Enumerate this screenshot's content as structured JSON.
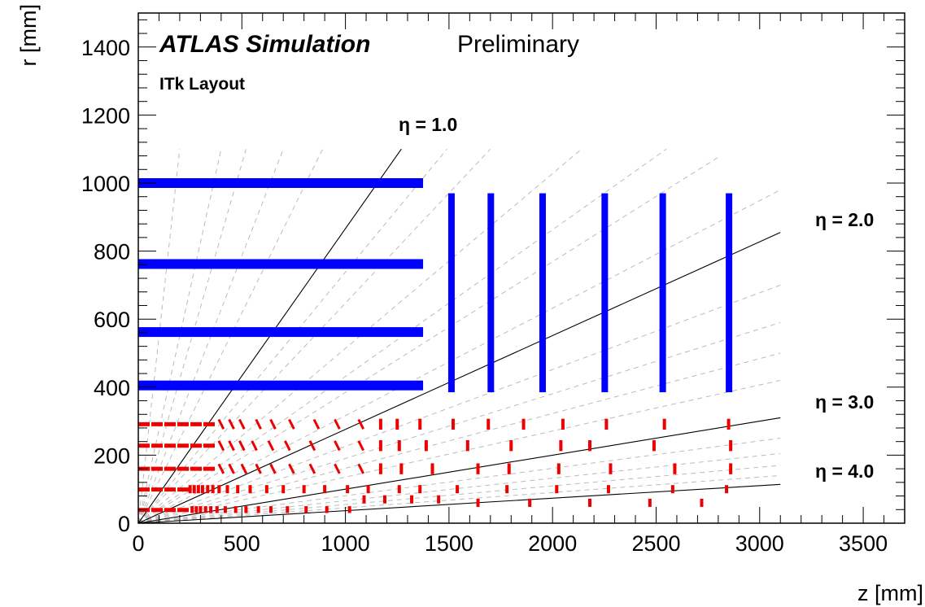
{
  "chart_data": {
    "type": "scatter",
    "title": "ATLAS Simulation",
    "subtitle": "Preliminary",
    "label": "ITk Layout",
    "xlabel": "z [mm]",
    "ylabel": "r [mm]",
    "xlim": [
      0,
      3700
    ],
    "ylim": [
      0,
      1500
    ],
    "x_ticks": [
      0,
      500,
      1000,
      1500,
      2000,
      2500,
      3000,
      3500
    ],
    "y_ticks": [
      0,
      200,
      400,
      600,
      800,
      1000,
      1200,
      1400
    ],
    "colors": {
      "strip": "#0000ff",
      "pixel": "#ee0000",
      "eta_line": "#000000",
      "eta_dashed": "#bbbbbb"
    },
    "eta_lines": [
      {
        "label": "η = 1.0",
        "eta": 1.0,
        "z_end": 1270,
        "r_end": 1100
      },
      {
        "label": "η = 2.0",
        "eta": 2.0,
        "z_end": 3100,
        "r_end": 855
      },
      {
        "label": "η = 3.0",
        "eta": 3.0,
        "z_end": 3100,
        "r_end": 310
      },
      {
        "label": "η = 4.0",
        "eta": 4.0,
        "z_end": 3100,
        "r_end": 114
      }
    ],
    "eta_dashed_lines": [
      {
        "z_end": 200,
        "r_end": 1100
      },
      {
        "z_end": 400,
        "r_end": 1100
      },
      {
        "z_end": 520,
        "r_end": 1100
      },
      {
        "z_end": 700,
        "r_end": 1100
      },
      {
        "z_end": 890,
        "r_end": 1100
      },
      {
        "z_end": 1490,
        "r_end": 1100
      },
      {
        "z_end": 1700,
        "r_end": 1100
      },
      {
        "z_end": 2140,
        "r_end": 1100
      },
      {
        "z_end": 2550,
        "r_end": 1100
      },
      {
        "z_end": 2810,
        "r_end": 1080
      },
      {
        "z_end": 3100,
        "r_end": 980
      },
      {
        "z_end": 3100,
        "r_end": 700
      },
      {
        "z_end": 3100,
        "r_end": 590
      },
      {
        "z_end": 3100,
        "r_end": 500
      },
      {
        "z_end": 3100,
        "r_end": 420
      },
      {
        "z_end": 3100,
        "r_end": 250
      },
      {
        "z_end": 3100,
        "r_end": 205
      },
      {
        "z_end": 3100,
        "r_end": 170
      },
      {
        "z_end": 3100,
        "r_end": 140
      }
    ],
    "strip_barrel": [
      {
        "r": 1000,
        "z_min": 0,
        "z_max": 1375
      },
      {
        "r": 762,
        "z_min": 0,
        "z_max": 1375
      },
      {
        "r": 562,
        "z_min": 0,
        "z_max": 1375
      },
      {
        "r": 405,
        "z_min": 0,
        "z_max": 1375
      }
    ],
    "strip_endcap": [
      {
        "z": 1512,
        "r_min": 385,
        "r_max": 970
      },
      {
        "z": 1702,
        "r_min": 385,
        "r_max": 970
      },
      {
        "z": 1952,
        "r_min": 385,
        "r_max": 970
      },
      {
        "z": 2252,
        "r_min": 385,
        "r_max": 970
      },
      {
        "z": 2532,
        "r_min": 385,
        "r_max": 970
      },
      {
        "z": 2852,
        "r_min": 385,
        "r_max": 970
      }
    ],
    "pixel_barrel": [
      {
        "r": 291,
        "z_min": 0,
        "z_max": 372
      },
      {
        "r": 228,
        "z_min": 0,
        "z_max": 372
      },
      {
        "r": 160,
        "z_min": 0,
        "z_max": 372
      },
      {
        "r": 99,
        "z_min": 0,
        "z_max": 245
      },
      {
        "r": 39,
        "z_min": 0,
        "z_max": 245
      }
    ],
    "pixel_modules": [
      {
        "z": 400,
        "r": 291,
        "len": 28,
        "tilt": 0.5
      },
      {
        "z": 450,
        "r": 291,
        "len": 28,
        "tilt": 0.5
      },
      {
        "z": 500,
        "r": 291,
        "len": 28,
        "tilt": 0.5
      },
      {
        "z": 580,
        "r": 291,
        "len": 28,
        "tilt": 0.5
      },
      {
        "z": 650,
        "r": 291,
        "len": 28,
        "tilt": 0.5
      },
      {
        "z": 740,
        "r": 291,
        "len": 28,
        "tilt": 0.5
      },
      {
        "z": 860,
        "r": 291,
        "len": 28,
        "tilt": 0.5
      },
      {
        "z": 960,
        "r": 291,
        "len": 28,
        "tilt": 0.5
      },
      {
        "z": 1075,
        "r": 291,
        "len": 28,
        "tilt": 0.5
      },
      {
        "z": 400,
        "r": 228,
        "len": 28,
        "tilt": 0.5
      },
      {
        "z": 450,
        "r": 228,
        "len": 28,
        "tilt": 0.5
      },
      {
        "z": 500,
        "r": 228,
        "len": 28,
        "tilt": 0.5
      },
      {
        "z": 560,
        "r": 228,
        "len": 28,
        "tilt": 0.5
      },
      {
        "z": 640,
        "r": 228,
        "len": 28,
        "tilt": 0.5
      },
      {
        "z": 720,
        "r": 228,
        "len": 28,
        "tilt": 0.5
      },
      {
        "z": 840,
        "r": 228,
        "len": 28,
        "tilt": 0.5
      },
      {
        "z": 960,
        "r": 228,
        "len": 28,
        "tilt": 0.5
      },
      {
        "z": 1075,
        "r": 228,
        "len": 28,
        "tilt": 0.5
      },
      {
        "z": 400,
        "r": 160,
        "len": 28,
        "tilt": 0.5
      },
      {
        "z": 450,
        "r": 160,
        "len": 28,
        "tilt": 0.5
      },
      {
        "z": 510,
        "r": 160,
        "len": 28,
        "tilt": 0.5
      },
      {
        "z": 580,
        "r": 160,
        "len": 28,
        "tilt": 0.5
      },
      {
        "z": 650,
        "r": 160,
        "len": 28,
        "tilt": 0.5
      },
      {
        "z": 740,
        "r": 160,
        "len": 28,
        "tilt": 0.5
      },
      {
        "z": 840,
        "r": 160,
        "len": 28,
        "tilt": 0.5
      },
      {
        "z": 960,
        "r": 160,
        "len": 28,
        "tilt": 0.5
      },
      {
        "z": 1075,
        "r": 160,
        "len": 28,
        "tilt": 0.5
      },
      {
        "z": 1170,
        "r": 291,
        "len": 32,
        "tilt": 0
      },
      {
        "z": 1250,
        "r": 291,
        "len": 32,
        "tilt": 0
      },
      {
        "z": 1360,
        "r": 291,
        "len": 32,
        "tilt": 0
      },
      {
        "z": 1520,
        "r": 291,
        "len": 32,
        "tilt": 0
      },
      {
        "z": 1690,
        "r": 291,
        "len": 32,
        "tilt": 0
      },
      {
        "z": 1860,
        "r": 291,
        "len": 32,
        "tilt": 0
      },
      {
        "z": 2050,
        "r": 291,
        "len": 32,
        "tilt": 0
      },
      {
        "z": 2260,
        "r": 291,
        "len": 32,
        "tilt": 0
      },
      {
        "z": 2540,
        "r": 291,
        "len": 32,
        "tilt": 0
      },
      {
        "z": 2850,
        "r": 291,
        "len": 32,
        "tilt": 0
      },
      {
        "z": 1170,
        "r": 228,
        "len": 32,
        "tilt": 0
      },
      {
        "z": 1260,
        "r": 228,
        "len": 32,
        "tilt": 0
      },
      {
        "z": 1390,
        "r": 228,
        "len": 32,
        "tilt": 0
      },
      {
        "z": 1590,
        "r": 228,
        "len": 32,
        "tilt": 0
      },
      {
        "z": 1800,
        "r": 228,
        "len": 32,
        "tilt": 0
      },
      {
        "z": 2040,
        "r": 228,
        "len": 32,
        "tilt": 0
      },
      {
        "z": 2180,
        "r": 228,
        "len": 32,
        "tilt": 0
      },
      {
        "z": 2490,
        "r": 228,
        "len": 32,
        "tilt": 0
      },
      {
        "z": 2860,
        "r": 228,
        "len": 32,
        "tilt": 0
      },
      {
        "z": 1170,
        "r": 160,
        "len": 32,
        "tilt": 0
      },
      {
        "z": 1270,
        "r": 160,
        "len": 32,
        "tilt": 0
      },
      {
        "z": 1420,
        "r": 160,
        "len": 32,
        "tilt": 0
      },
      {
        "z": 1640,
        "r": 160,
        "len": 32,
        "tilt": 0
      },
      {
        "z": 1790,
        "r": 160,
        "len": 32,
        "tilt": 0
      },
      {
        "z": 2030,
        "r": 160,
        "len": 32,
        "tilt": 0
      },
      {
        "z": 2280,
        "r": 160,
        "len": 32,
        "tilt": 0
      },
      {
        "z": 2590,
        "r": 160,
        "len": 32,
        "tilt": 0
      },
      {
        "z": 2860,
        "r": 160,
        "len": 32,
        "tilt": 0
      },
      {
        "z": 250,
        "r": 100,
        "len": 24,
        "tilt": 0
      },
      {
        "z": 270,
        "r": 100,
        "len": 24,
        "tilt": 0
      },
      {
        "z": 290,
        "r": 100,
        "len": 24,
        "tilt": 0
      },
      {
        "z": 310,
        "r": 100,
        "len": 24,
        "tilt": 0
      },
      {
        "z": 335,
        "r": 100,
        "len": 24,
        "tilt": 0
      },
      {
        "z": 360,
        "r": 100,
        "len": 24,
        "tilt": 0
      },
      {
        "z": 390,
        "r": 100,
        "len": 24,
        "tilt": 0
      },
      {
        "z": 430,
        "r": 100,
        "len": 24,
        "tilt": 0
      },
      {
        "z": 480,
        "r": 100,
        "len": 24,
        "tilt": 0
      },
      {
        "z": 540,
        "r": 100,
        "len": 24,
        "tilt": 0
      },
      {
        "z": 620,
        "r": 100,
        "len": 24,
        "tilt": 0
      },
      {
        "z": 700,
        "r": 100,
        "len": 24,
        "tilt": 0
      },
      {
        "z": 800,
        "r": 100,
        "len": 24,
        "tilt": 0
      },
      {
        "z": 900,
        "r": 100,
        "len": 24,
        "tilt": 0
      },
      {
        "z": 1010,
        "r": 100,
        "len": 24,
        "tilt": 0
      },
      {
        "z": 1110,
        "r": 100,
        "len": 24,
        "tilt": 0
      },
      {
        "z": 1260,
        "r": 100,
        "len": 24,
        "tilt": 0
      },
      {
        "z": 1360,
        "r": 100,
        "len": 24,
        "tilt": 0
      },
      {
        "z": 1540,
        "r": 100,
        "len": 24,
        "tilt": 0
      },
      {
        "z": 1780,
        "r": 100,
        "len": 24,
        "tilt": 0
      },
      {
        "z": 2020,
        "r": 100,
        "len": 24,
        "tilt": 0
      },
      {
        "z": 2270,
        "r": 100,
        "len": 24,
        "tilt": 0
      },
      {
        "z": 2580,
        "r": 100,
        "len": 24,
        "tilt": 0
      },
      {
        "z": 2840,
        "r": 100,
        "len": 24,
        "tilt": 0
      },
      {
        "z": 260,
        "r": 40,
        "len": 20,
        "tilt": 0
      },
      {
        "z": 280,
        "r": 40,
        "len": 20,
        "tilt": 0
      },
      {
        "z": 300,
        "r": 40,
        "len": 20,
        "tilt": 0
      },
      {
        "z": 325,
        "r": 40,
        "len": 20,
        "tilt": 0
      },
      {
        "z": 350,
        "r": 40,
        "len": 20,
        "tilt": 0
      },
      {
        "z": 380,
        "r": 40,
        "len": 20,
        "tilt": 0
      },
      {
        "z": 420,
        "r": 40,
        "len": 20,
        "tilt": 0
      },
      {
        "z": 470,
        "r": 40,
        "len": 20,
        "tilt": 0
      },
      {
        "z": 520,
        "r": 40,
        "len": 20,
        "tilt": 0
      },
      {
        "z": 580,
        "r": 40,
        "len": 20,
        "tilt": 0
      },
      {
        "z": 640,
        "r": 40,
        "len": 20,
        "tilt": 0
      },
      {
        "z": 720,
        "r": 40,
        "len": 20,
        "tilt": 0
      },
      {
        "z": 810,
        "r": 40,
        "len": 20,
        "tilt": 0
      },
      {
        "z": 910,
        "r": 40,
        "len": 20,
        "tilt": 0
      },
      {
        "z": 1020,
        "r": 40,
        "len": 20,
        "tilt": 0
      },
      {
        "z": 1090,
        "r": 70,
        "len": 24,
        "tilt": 0
      },
      {
        "z": 1190,
        "r": 70,
        "len": 24,
        "tilt": 0
      },
      {
        "z": 1320,
        "r": 70,
        "len": 24,
        "tilt": 0
      },
      {
        "z": 1450,
        "r": 70,
        "len": 24,
        "tilt": 0
      },
      {
        "z": 1640,
        "r": 60,
        "len": 24,
        "tilt": 0
      },
      {
        "z": 1890,
        "r": 60,
        "len": 24,
        "tilt": 0
      },
      {
        "z": 2180,
        "r": 60,
        "len": 24,
        "tilt": 0
      },
      {
        "z": 2470,
        "r": 60,
        "len": 24,
        "tilt": 0
      },
      {
        "z": 2720,
        "r": 60,
        "len": 24,
        "tilt": 0
      }
    ]
  }
}
